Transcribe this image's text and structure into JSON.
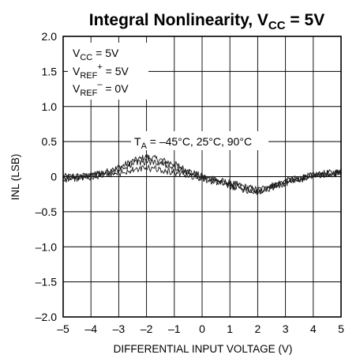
{
  "chart_data": {
    "type": "line",
    "title": {
      "main": "Integral Nonlinearity, V",
      "sub": "CC",
      "tail": " = 5V"
    },
    "xlabel": "DIFFERENTIAL INPUT VOLTAGE (V)",
    "ylabel": "INL (LSB)",
    "xlim": [
      -5,
      5
    ],
    "ylim": [
      -2.0,
      2.0
    ],
    "x_ticks": [
      -5,
      -4,
      -3,
      -2,
      -1,
      0,
      1,
      2,
      3,
      4,
      5
    ],
    "x_tick_labels": [
      "–5",
      "–4",
      "–3",
      "–2",
      "–1",
      "0",
      "1",
      "2",
      "3",
      "4",
      "5"
    ],
    "y_ticks": [
      2.0,
      1.5,
      1.0,
      0.5,
      0,
      -0.5,
      -1.0,
      -1.5,
      -2.0
    ],
    "y_tick_labels": [
      "2.0",
      "1.5",
      "1.0",
      "0.5",
      "0",
      "–0.5",
      "–1.0",
      "–1.5",
      "–2.0"
    ],
    "grid": true,
    "conditions": [
      {
        "pre": "V",
        "sub": "CC",
        "sup": "",
        "post": " = 5V"
      },
      {
        "pre": "V",
        "sub": "REF",
        "sup": "+",
        "post": " = 5V"
      },
      {
        "pre": "V",
        "sub": "REF",
        "sup": "–",
        "post": " = 0V"
      }
    ],
    "series_label": {
      "pre": "T",
      "sub": "A",
      "post": " = –45°C, 25°C, 90°C"
    },
    "x": [
      -5,
      -4.5,
      -4,
      -3.5,
      -3,
      -2.5,
      -2,
      -1.5,
      -1,
      -0.5,
      0,
      0.5,
      1,
      1.5,
      2,
      2.5,
      3,
      3.5,
      4,
      4.5,
      5
    ],
    "series": [
      {
        "values": [
          0.0,
          0.0,
          0.02,
          0.06,
          0.13,
          0.22,
          0.28,
          0.24,
          0.18,
          0.08,
          0.0,
          -0.05,
          -0.09,
          -0.14,
          -0.19,
          -0.13,
          -0.06,
          -0.02,
          0.02,
          0.05,
          0.07
        ]
      },
      {
        "values": [
          -0.02,
          0.0,
          0.02,
          0.05,
          0.1,
          0.18,
          0.22,
          0.2,
          0.14,
          0.06,
          0.0,
          -0.05,
          -0.1,
          -0.16,
          -0.21,
          -0.15,
          -0.08,
          -0.03,
          0.01,
          0.04,
          0.06
        ]
      },
      {
        "values": [
          -0.04,
          -0.02,
          0.0,
          0.02,
          0.05,
          0.09,
          0.12,
          0.1,
          0.06,
          0.02,
          -0.03,
          -0.08,
          -0.13,
          -0.18,
          -0.22,
          -0.16,
          -0.09,
          -0.04,
          0.0,
          0.03,
          0.05
        ]
      }
    ]
  }
}
